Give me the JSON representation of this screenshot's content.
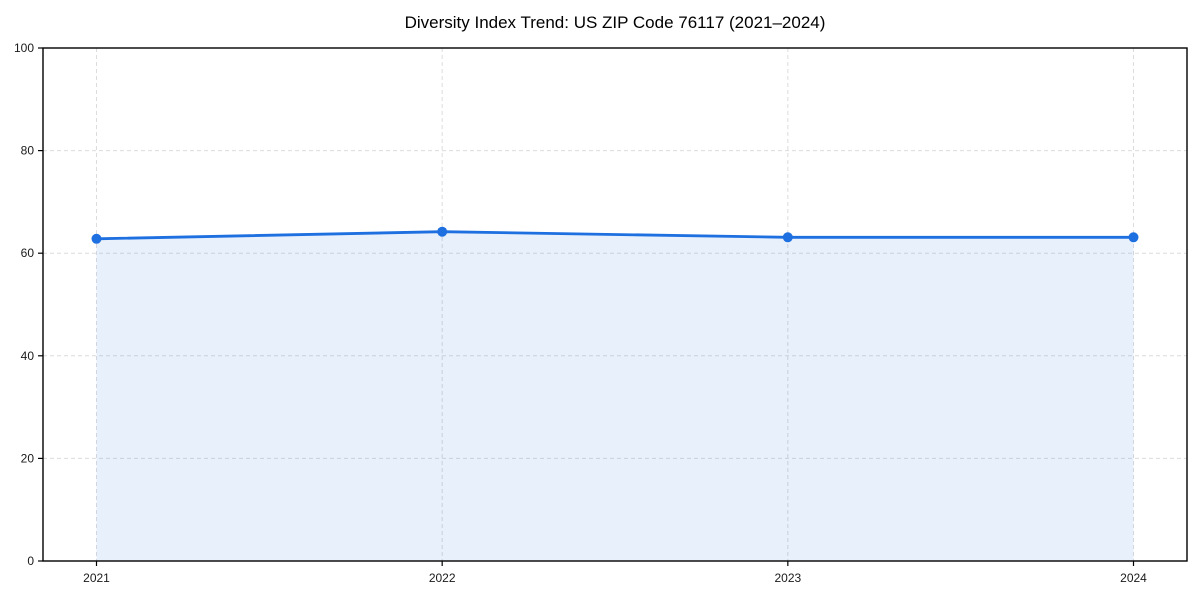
{
  "chart_data": {
    "type": "area",
    "title": "Diversity Index Trend: US ZIP Code 76117 (2021–2024)",
    "categories": [
      "2021",
      "2022",
      "2023",
      "2024"
    ],
    "values": [
      62.8,
      64.2,
      63.1,
      63.1
    ],
    "xlabel": "",
    "ylabel": "",
    "ylim": [
      0,
      100
    ],
    "yticks": [
      0,
      20,
      40,
      60,
      80,
      100
    ],
    "grid": "dashed-both-axes",
    "legend_position": "none",
    "line_color": "#1e6fe0",
    "marker": "circle",
    "fill_below_line": true,
    "fill_opacity": 0.1,
    "grid_color": "#dcdcdc",
    "axis_color": "#000000",
    "tick_label_color": "#1a1a1a",
    "title_color": "#000000",
    "background_color": "#ffffff"
  }
}
